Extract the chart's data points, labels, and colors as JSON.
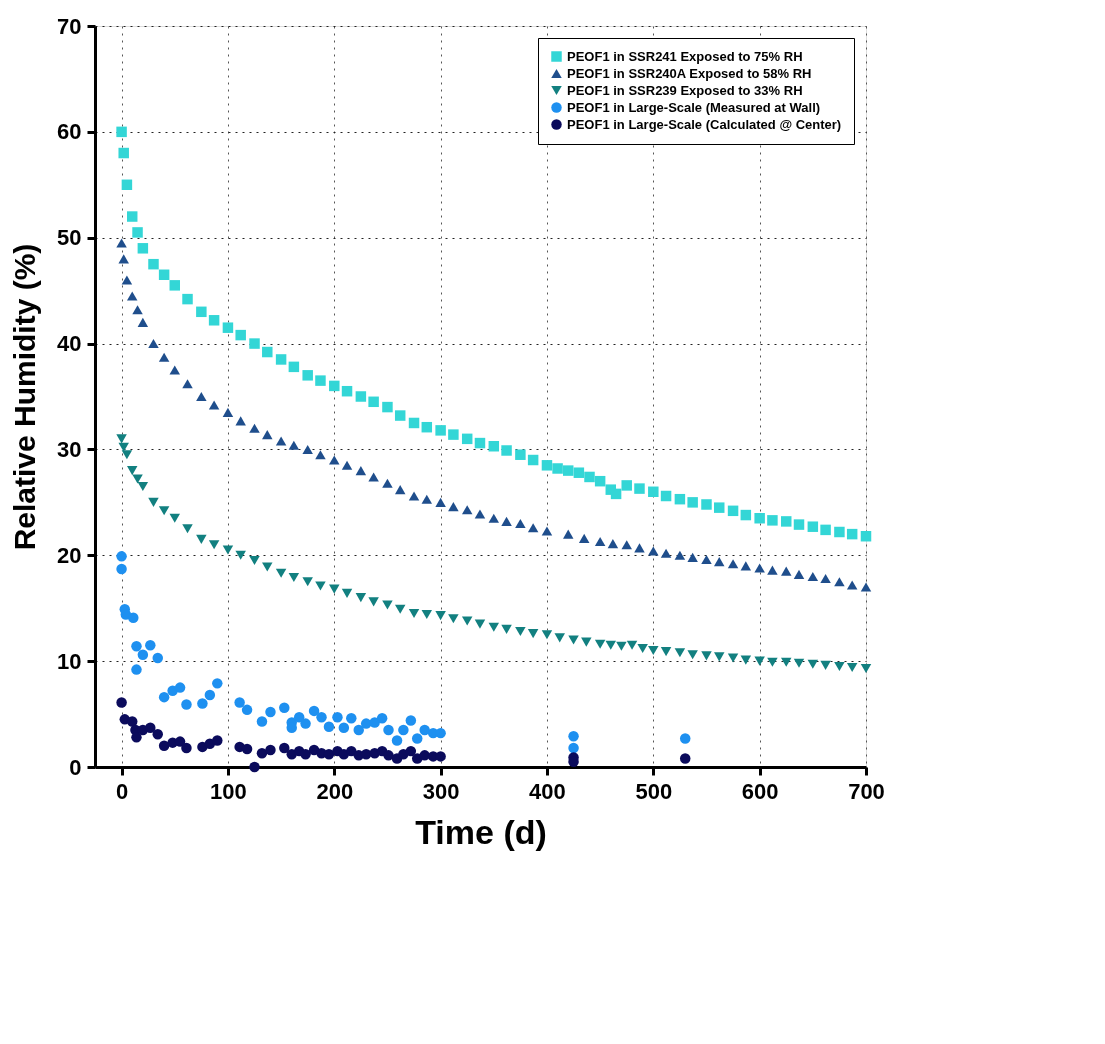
{
  "chart_data": {
    "type": "scatter",
    "xlabel": "Time (d)",
    "ylabel": "Relative Humidity (%)",
    "xlim": [
      -25,
      700
    ],
    "ylim": [
      0,
      70
    ],
    "xticks": [
      0,
      100,
      200,
      300,
      400,
      500,
      600,
      700
    ],
    "yticks": [
      0,
      10,
      20,
      30,
      40,
      50,
      60,
      70
    ],
    "grid": true,
    "legend": "top right",
    "series": [
      {
        "name": "PEOF1 in SSR241 Exposed to 75% RH",
        "color": "#33d6d6",
        "marker": "square",
        "x": [
          0,
          2,
          5,
          10,
          15,
          20,
          30,
          40,
          50,
          62,
          75,
          87,
          100,
          112,
          125,
          137,
          150,
          162,
          175,
          187,
          200,
          212,
          225,
          237,
          250,
          262,
          275,
          287,
          300,
          312,
          325,
          337,
          350,
          362,
          375,
          387,
          400,
          410,
          420,
          430,
          440,
          450,
          460,
          465,
          475,
          487,
          500,
          512,
          525,
          537,
          550,
          562,
          575,
          587,
          600,
          612,
          625,
          637,
          650,
          662,
          675,
          687,
          700
        ],
        "values": [
          60,
          58,
          55,
          52,
          50.5,
          49,
          47.5,
          46.5,
          45.5,
          44.2,
          43,
          42.2,
          41.5,
          40.8,
          40,
          39.2,
          38.5,
          37.8,
          37,
          36.5,
          36,
          35.5,
          35,
          34.5,
          34,
          33.2,
          32.5,
          32.1,
          31.8,
          31.4,
          31,
          30.6,
          30.3,
          29.9,
          29.5,
          29,
          28.5,
          28.2,
          28,
          27.8,
          27.4,
          27,
          26.2,
          25.8,
          26.6,
          26.3,
          26,
          25.6,
          25.3,
          25,
          24.8,
          24.5,
          24.2,
          23.8,
          23.5,
          23.3,
          23.2,
          22.9,
          22.7,
          22.4,
          22.2,
          22,
          21.8
        ]
      },
      {
        "name": "PEOF1 in SSR240A Exposed to 58% RH",
        "color": "#1f4e8c",
        "marker": "triangle",
        "x": [
          0,
          2,
          5,
          10,
          15,
          20,
          30,
          40,
          50,
          62,
          75,
          87,
          100,
          112,
          125,
          137,
          150,
          162,
          175,
          187,
          200,
          212,
          225,
          237,
          250,
          262,
          275,
          287,
          300,
          312,
          325,
          337,
          350,
          362,
          375,
          387,
          400,
          420,
          435,
          450,
          462,
          475,
          487,
          500,
          512,
          525,
          537,
          550,
          562,
          575,
          587,
          600,
          612,
          625,
          637,
          650,
          662,
          675,
          687,
          700
        ],
        "values": [
          49.5,
          48,
          46,
          44.5,
          43.2,
          42,
          40,
          38.7,
          37.5,
          36.2,
          35,
          34.2,
          33.5,
          32.7,
          32,
          31.4,
          30.8,
          30.4,
          30,
          29.5,
          29,
          28.5,
          28,
          27.4,
          26.8,
          26.2,
          25.6,
          25.3,
          25,
          24.6,
          24.3,
          23.9,
          23.5,
          23.2,
          23,
          22.6,
          22.3,
          22,
          21.6,
          21.3,
          21.1,
          21,
          20.7,
          20.4,
          20.2,
          20,
          19.8,
          19.6,
          19.4,
          19.2,
          19,
          18.8,
          18.6,
          18.5,
          18.2,
          18,
          17.8,
          17.5,
          17.2,
          17
        ]
      },
      {
        "name": "PEOF1 in SSR239 Exposed to 33% RH",
        "color": "#128080",
        "marker": "triangle-down",
        "x": [
          0,
          2,
          5,
          10,
          15,
          20,
          30,
          40,
          50,
          62,
          75,
          87,
          100,
          112,
          125,
          137,
          150,
          162,
          175,
          187,
          200,
          212,
          225,
          237,
          250,
          262,
          275,
          287,
          300,
          312,
          325,
          337,
          350,
          362,
          375,
          387,
          400,
          412,
          425,
          437,
          450,
          460,
          470,
          480,
          490,
          500,
          512,
          525,
          537,
          550,
          562,
          575,
          587,
          600,
          612,
          625,
          637,
          650,
          662,
          675,
          687,
          700
        ],
        "values": [
          31,
          30.2,
          29.5,
          28,
          27.2,
          26.5,
          25,
          24.2,
          23.5,
          22.5,
          21.5,
          21,
          20.5,
          20,
          19.5,
          18.9,
          18.3,
          17.9,
          17.5,
          17.1,
          16.8,
          16.4,
          16,
          15.6,
          15.3,
          14.9,
          14.5,
          14.4,
          14.3,
          14,
          13.8,
          13.5,
          13.2,
          13,
          12.8,
          12.6,
          12.5,
          12.2,
          12,
          11.8,
          11.6,
          11.5,
          11.4,
          11.5,
          11.2,
          11,
          10.9,
          10.8,
          10.6,
          10.5,
          10.4,
          10.3,
          10.1,
          10,
          9.9,
          9.9,
          9.8,
          9.7,
          9.6,
          9.5,
          9.4,
          9.3
        ]
      },
      {
        "name": "PEOF1 in Large-Scale (Measured at Wall)",
        "color": "#1e90f0",
        "marker": "circle",
        "x": [
          0,
          0,
          3,
          4,
          11,
          14,
          20,
          27,
          34,
          14,
          40,
          48,
          55,
          61,
          76,
          83,
          90,
          111,
          118,
          132,
          140,
          153,
          160,
          160,
          167,
          173,
          181,
          188,
          195,
          203,
          209,
          216,
          223,
          230,
          238,
          245,
          251,
          259,
          265,
          272,
          278,
          285,
          293,
          300,
          425,
          425,
          530
        ],
        "values": [
          19.9,
          18.7,
          14.9,
          14.4,
          14.1,
          11.4,
          10.6,
          11.5,
          10.3,
          9.2,
          6.6,
          7.2,
          7.5,
          5.9,
          6.0,
          6.8,
          7.9,
          6.1,
          5.4,
          4.3,
          5.2,
          5.6,
          4.2,
          3.7,
          4.7,
          4.1,
          5.3,
          4.7,
          3.8,
          4.7,
          3.7,
          4.6,
          3.5,
          4.1,
          4.2,
          4.6,
          3.5,
          2.5,
          3.5,
          4.4,
          2.7,
          3.5,
          3.2,
          3.2,
          2.9,
          1.8,
          2.7
        ]
      },
      {
        "name": "PEOF1 in Large-Scale (Calculated @ Center)",
        "color": "#0b0b5c",
        "marker": "circle",
        "x": [
          0,
          3,
          10,
          13,
          14,
          20,
          27,
          34,
          40,
          48,
          55,
          61,
          76,
          83,
          90,
          111,
          118,
          125,
          132,
          140,
          153,
          160,
          167,
          173,
          181,
          188,
          195,
          203,
          209,
          216,
          223,
          230,
          238,
          245,
          251,
          259,
          265,
          272,
          278,
          285,
          293,
          300,
          425,
          425,
          530
        ],
        "values": [
          6.1,
          4.5,
          4.3,
          3.5,
          2.8,
          3.5,
          3.7,
          3.1,
          2.0,
          2.3,
          2.4,
          1.8,
          1.9,
          2.2,
          2.5,
          1.9,
          1.7,
          0.0,
          1.3,
          1.6,
          1.8,
          1.2,
          1.5,
          1.2,
          1.6,
          1.3,
          1.2,
          1.5,
          1.2,
          1.5,
          1.1,
          1.2,
          1.3,
          1.5,
          1.1,
          0.8,
          1.2,
          1.5,
          0.8,
          1.1,
          1.0,
          1.0,
          0.9,
          0.5,
          0.8
        ]
      }
    ]
  }
}
